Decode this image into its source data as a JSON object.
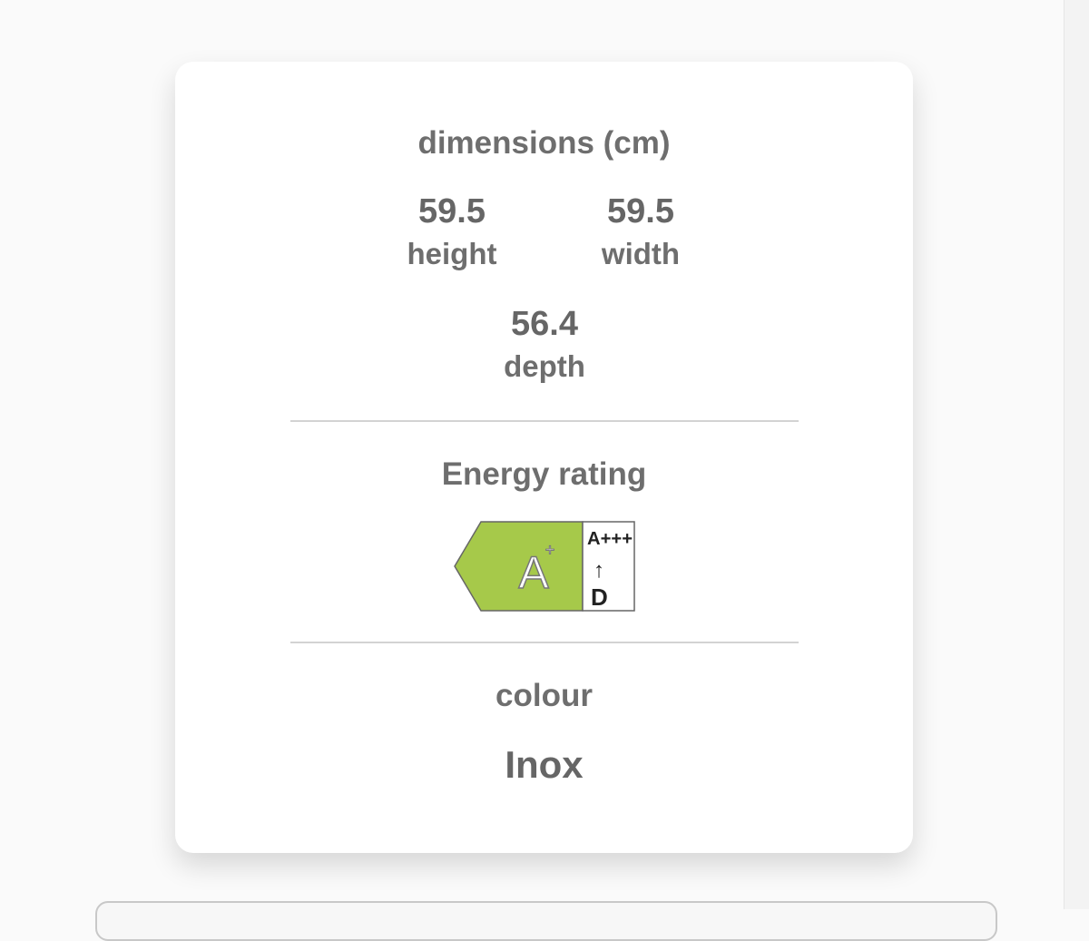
{
  "dimensions": {
    "title": "dimensions (cm)",
    "height": {
      "value": "59.5",
      "label": "height"
    },
    "width": {
      "value": "59.5",
      "label": "width"
    },
    "depth": {
      "value": "56.4",
      "label": "depth"
    }
  },
  "energy": {
    "title": "Energy rating",
    "rating": "A+",
    "scale_top": "A+++",
    "scale_bottom": "D",
    "arrow": "↑",
    "color": "#a6c94a"
  },
  "colour": {
    "title": "colour",
    "value": "Inox"
  }
}
